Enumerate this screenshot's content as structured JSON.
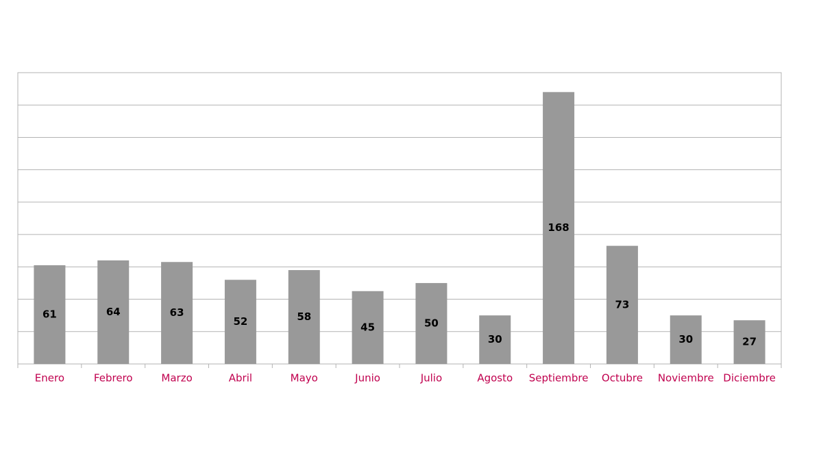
{
  "chart_data": {
    "type": "bar",
    "categories": [
      "Enero",
      "Febrero",
      "Marzo",
      "Abril",
      "Mayo",
      "Junio",
      "Julio",
      "Agosto",
      "Septiembre",
      "Octubre",
      "Noviembre",
      "Diciembre"
    ],
    "values": [
      61,
      64,
      63,
      52,
      58,
      45,
      50,
      30,
      168,
      73,
      30,
      27
    ],
    "color": "#999999",
    "ylim": [
      0,
      180
    ],
    "yticks": [
      0,
      20,
      40,
      60,
      80,
      100,
      120,
      140,
      160,
      180
    ],
    "grid": true
  }
}
